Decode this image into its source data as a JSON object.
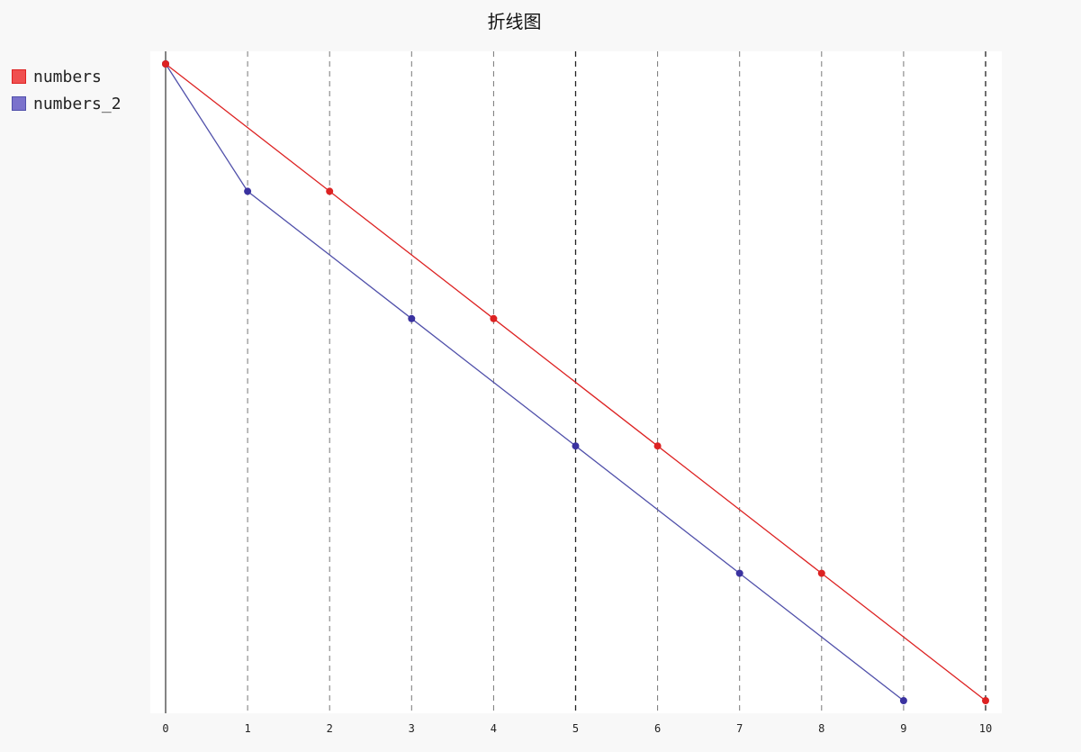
{
  "chart_data": {
    "type": "line",
    "title": "折线图",
    "xlabel": "",
    "ylabel": "",
    "x": [
      0,
      1,
      2,
      3,
      4,
      5,
      6,
      7,
      8,
      9,
      10
    ],
    "xlim": [
      0,
      10
    ],
    "ylim": [
      0,
      10
    ],
    "grid": "vertical-dashed",
    "legend_position": "top-left",
    "series": [
      {
        "name": "numbers",
        "color": "#dd2222",
        "swatch_color": "#f05050",
        "points": [
          [
            0,
            10
          ],
          [
            2,
            8
          ],
          [
            4,
            6
          ],
          [
            6,
            4
          ],
          [
            8,
            2
          ],
          [
            10,
            0
          ]
        ]
      },
      {
        "name": "numbers_2",
        "color": "#5050aa",
        "marker_color": "#3a32a0",
        "swatch_color": "#7b72cc",
        "points": [
          [
            0,
            10
          ],
          [
            1,
            8
          ],
          [
            3,
            6
          ],
          [
            5,
            4
          ],
          [
            7,
            2
          ],
          [
            9,
            0
          ]
        ]
      }
    ]
  }
}
